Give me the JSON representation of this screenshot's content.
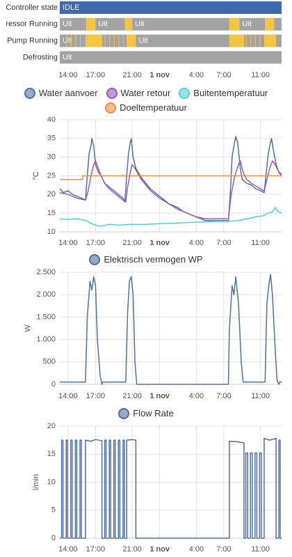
{
  "chart_data": [
    {
      "type": "timeline",
      "xlim": [
        13.1,
        37.3
      ],
      "xticks": [
        {
          "value": 14,
          "label": "14:00"
        },
        {
          "value": 17,
          "label": "17:00"
        },
        {
          "value": 21,
          "label": "21:00"
        },
        {
          "value": 24,
          "label": "1 nov"
        },
        {
          "value": 28,
          "label": "4:00"
        },
        {
          "value": 31,
          "label": "7:00"
        },
        {
          "value": 35,
          "label": "11:00"
        }
      ],
      "rows": [
        {
          "name": "Controller state",
          "segments": [
            {
              "start": 13.1,
              "end": 37.3,
              "color": "#3f6aab",
              "label": "IDLE"
            }
          ]
        },
        {
          "name": "ressor Running",
          "segments": [
            {
              "start": 13.1,
              "end": 16.0,
              "color": "#a3a3a3",
              "label": "Uit"
            },
            {
              "start": 16.0,
              "end": 17.0,
              "color": "#f4c542",
              "label": null
            },
            {
              "start": 17.0,
              "end": 20.2,
              "color": "#a3a3a3",
              "label": "Uit"
            },
            {
              "start": 20.2,
              "end": 21.0,
              "color": "#f4c542",
              "label": null
            },
            {
              "start": 21.0,
              "end": 31.6,
              "color": "#a3a3a3",
              "label": "Uit"
            },
            {
              "start": 31.6,
              "end": 32.7,
              "color": "#f4c542",
              "label": null
            },
            {
              "start": 32.7,
              "end": 35.5,
              "color": "#a3a3a3",
              "label": "Uit"
            },
            {
              "start": 35.5,
              "end": 36.5,
              "color": "#f4c542",
              "label": null
            },
            {
              "start": 36.5,
              "end": 37.3,
              "color": "#a3a3a3",
              "label": null
            }
          ]
        },
        {
          "name": "Pump Running",
          "segments": [
            {
              "start": 13.1,
              "end": 15.9,
              "color": "#a3a3a3",
              "label": "Uit"
            },
            {
              "start": 13.8,
              "end": 13.88,
              "color": "#f4c542",
              "label": null
            },
            {
              "start": 14.3,
              "end": 14.38,
              "color": "#f4c542",
              "label": null
            },
            {
              "start": 14.8,
              "end": 14.88,
              "color": "#f4c542",
              "label": null
            },
            {
              "start": 15.3,
              "end": 15.38,
              "color": "#f4c542",
              "label": null
            },
            {
              "start": 15.9,
              "end": 17.7,
              "color": "#f4c542",
              "label": null
            },
            {
              "start": 17.7,
              "end": 20.4,
              "color": "#a3a3a3",
              "label": null
            },
            {
              "start": 18.0,
              "end": 18.08,
              "color": "#f4c542",
              "label": null
            },
            {
              "start": 18.5,
              "end": 18.58,
              "color": "#f4c542",
              "label": null
            },
            {
              "start": 19.0,
              "end": 19.08,
              "color": "#f4c542",
              "label": null
            },
            {
              "start": 19.5,
              "end": 19.58,
              "color": "#f4c542",
              "label": null
            },
            {
              "start": 20.0,
              "end": 20.08,
              "color": "#f4c542",
              "label": null
            },
            {
              "start": 20.4,
              "end": 21.4,
              "color": "#f4c542",
              "label": null
            },
            {
              "start": 21.4,
              "end": 31.6,
              "color": "#a3a3a3",
              "label": "Uit"
            },
            {
              "start": 31.6,
              "end": 33.2,
              "color": "#f4c542",
              "label": null
            },
            {
              "start": 33.2,
              "end": 35.4,
              "color": "#a3a3a3",
              "label": null
            },
            {
              "start": 33.4,
              "end": 33.48,
              "color": "#f4c542",
              "label": null
            },
            {
              "start": 33.9,
              "end": 33.98,
              "color": "#f4c542",
              "label": null
            },
            {
              "start": 34.4,
              "end": 34.48,
              "color": "#f4c542",
              "label": null
            },
            {
              "start": 34.9,
              "end": 34.98,
              "color": "#f4c542",
              "label": null
            },
            {
              "start": 35.4,
              "end": 36.7,
              "color": "#f4c542",
              "label": null
            },
            {
              "start": 36.7,
              "end": 37.3,
              "color": "#a3a3a3",
              "label": null
            }
          ]
        },
        {
          "name": "Defrosting",
          "segments": [
            {
              "start": 13.1,
              "end": 37.3,
              "color": "#a3a3a3",
              "label": "Uit"
            }
          ]
        }
      ]
    },
    {
      "type": "line",
      "yaxis_label": "°C",
      "xlim": [
        13.1,
        37.3
      ],
      "xticks": [
        {
          "value": 14,
          "label": "14:00"
        },
        {
          "value": 17,
          "label": "17:00"
        },
        {
          "value": 21,
          "label": "21:00"
        },
        {
          "value": 24,
          "label": "1 nov"
        },
        {
          "value": 28,
          "label": "4:00"
        },
        {
          "value": 31,
          "label": "7:00"
        },
        {
          "value": 35,
          "label": "11:00"
        }
      ],
      "ylim": [
        10,
        40
      ],
      "yticks": [
        10,
        15,
        20,
        25,
        30,
        35,
        40
      ],
      "grid": true,
      "series": [
        {
          "name": "Water aanvoer",
          "color": "#50709e",
          "x": [
            13.1,
            13.5,
            14.0,
            14.5,
            15.0,
            15.5,
            15.9,
            16.1,
            16.3,
            16.5,
            16.6,
            16.8,
            17.0,
            17.3,
            17.6,
            18.0,
            18.5,
            19.0,
            19.5,
            20.0,
            20.2,
            20.4,
            20.6,
            20.8,
            20.9,
            21.1,
            21.4,
            22.0,
            22.5,
            23.0,
            23.5,
            24.0,
            24.5,
            25.0,
            25.5,
            26.0,
            26.5,
            27.0,
            27.5,
            28.0,
            28.5,
            29.0,
            31.5,
            31.7,
            31.9,
            32.1,
            32.3,
            32.5,
            32.8,
            33.0,
            33.5,
            34.0,
            34.5,
            35.0,
            35.4,
            35.6,
            35.8,
            36.0,
            36.2,
            36.4,
            36.7,
            37.0,
            37.3
          ],
          "values": [
            21.5,
            20.5,
            21,
            20,
            19.5,
            19,
            18.5,
            25,
            31,
            33,
            35,
            33,
            28,
            26,
            25,
            23,
            22,
            21,
            20,
            19,
            18,
            25,
            31,
            34,
            35,
            30,
            27,
            24.5,
            23,
            21.5,
            20.5,
            19.5,
            18.5,
            17.5,
            17,
            16.5,
            15.5,
            15,
            14.5,
            14,
            13.5,
            13,
            13,
            20,
            30,
            33,
            35.5,
            34,
            27,
            24,
            23,
            22.5,
            21.5,
            21,
            20.5,
            25,
            30,
            33,
            35,
            32,
            28,
            26,
            25
          ]
        },
        {
          "name": "Water retour",
          "color": "#9b59b6",
          "x": [
            13.1,
            14.0,
            15.0,
            15.9,
            16.2,
            16.5,
            16.8,
            17.0,
            17.3,
            17.6,
            18.0,
            18.5,
            19.0,
            19.5,
            20.0,
            20.3,
            20.5,
            20.8,
            21.0,
            21.3,
            22.0,
            23.0,
            24.0,
            25.0,
            26.0,
            27.0,
            28.0,
            29.0,
            31.5,
            31.8,
            32.2,
            32.6,
            32.8,
            33.1,
            33.5,
            34.0,
            35.0,
            35.4,
            35.7,
            36.0,
            36.3,
            36.6,
            37.0,
            37.3
          ],
          "values": [
            20.5,
            20,
            19,
            18.5,
            21,
            25,
            28,
            29,
            27,
            25,
            23,
            21.5,
            20.5,
            19.5,
            18.5,
            18,
            22,
            26,
            28,
            27,
            24,
            21,
            19,
            17.5,
            16,
            15,
            14,
            13.5,
            13.5,
            20,
            25,
            28,
            29,
            26,
            24,
            23,
            21.5,
            21,
            24,
            27,
            29,
            28,
            26,
            25.5
          ]
        },
        {
          "name": "Buitentemperatuur",
          "color": "#4fd1d4",
          "x": [
            13.1,
            14.0,
            15.0,
            16.0,
            16.5,
            17.0,
            17.5,
            18.5,
            19.5,
            21.0,
            22.5,
            24.0,
            25.5,
            27.0,
            28.5,
            30.0,
            31.5,
            32.5,
            33.5,
            34.5,
            35.3,
            35.8,
            36.3,
            36.6,
            36.9,
            37.3
          ],
          "values": [
            13.5,
            13.3,
            13.5,
            13,
            12.2,
            11.8,
            11.5,
            12,
            11.8,
            12,
            12,
            12.2,
            12.3,
            12.5,
            12.6,
            12.8,
            12.8,
            13,
            13.5,
            14,
            14.3,
            15,
            15.3,
            16.5,
            15.5,
            15
          ]
        },
        {
          "name": "Doeltemperatuur",
          "color": "#f0904a",
          "x": [
            13.1,
            15.6,
            15.6,
            37.3
          ],
          "values": [
            24,
            24,
            25,
            25
          ]
        }
      ]
    },
    {
      "type": "line",
      "yaxis_label": "W",
      "xlim": [
        13.1,
        37.3
      ],
      "xticks": [
        {
          "value": 14,
          "label": "14:00"
        },
        {
          "value": 17,
          "label": "17:00"
        },
        {
          "value": 21,
          "label": "21:00"
        },
        {
          "value": 24,
          "label": "1 nov"
        },
        {
          "value": 28,
          "label": "4:00"
        },
        {
          "value": 31,
          "label": "7:00"
        },
        {
          "value": 35,
          "label": "11:00"
        }
      ],
      "ylim": [
        0,
        2500
      ],
      "yticks": [
        0,
        500,
        {
          "value": 1000,
          "label": "1.000"
        },
        {
          "value": 1500,
          "label": "1.500"
        },
        {
          "value": 2000,
          "label": "2.000"
        },
        {
          "value": 2500,
          "label": "2.500"
        }
      ],
      "grid": true,
      "series": [
        {
          "name": "Elektrisch vermogen WP",
          "color": "#50709e",
          "x": [
            13.1,
            15.9,
            16.1,
            16.4,
            16.6,
            16.8,
            17.0,
            17.2,
            17.5,
            17.7,
            17.8,
            20.3,
            20.5,
            20.7,
            20.9,
            21.1,
            21.3,
            21.5,
            31.5,
            31.6,
            31.9,
            32.1,
            32.3,
            32.6,
            32.9,
            33.1,
            35.5,
            35.7,
            35.9,
            36.1,
            36.3,
            36.6,
            36.8,
            37.0,
            37.1,
            37.3
          ],
          "values": [
            50,
            50,
            1500,
            2300,
            2100,
            2400,
            2200,
            1000,
            200,
            0,
            50,
            50,
            1600,
            2300,
            2400,
            2000,
            500,
            0,
            0,
            1200,
            2200,
            2000,
            2400,
            1800,
            500,
            50,
            50,
            1800,
            2200,
            2450,
            2000,
            800,
            100,
            0,
            50,
            50
          ]
        }
      ]
    },
    {
      "type": "line",
      "yaxis_label": "l/min",
      "xlim": [
        13.1,
        37.3
      ],
      "xticks": [
        {
          "value": 14,
          "label": "14:00"
        },
        {
          "value": 17,
          "label": "17:00"
        },
        {
          "value": 21,
          "label": "21:00"
        },
        {
          "value": 24,
          "label": "1 nov"
        },
        {
          "value": 28,
          "label": "4:00"
        },
        {
          "value": 31,
          "label": "7:00"
        },
        {
          "value": 35,
          "label": "11:00"
        }
      ],
      "ylim": [
        0,
        20
      ],
      "yticks": [
        0,
        5,
        10,
        15,
        20
      ],
      "grid": true,
      "series": [
        {
          "name": "Flow Rate",
          "color": "#50709e",
          "x": [
            13.1,
            13.3,
            13.3,
            13.45,
            13.45,
            13.8,
            13.8,
            13.95,
            13.95,
            14.3,
            14.3,
            14.45,
            14.45,
            14.8,
            14.8,
            14.95,
            14.95,
            15.3,
            15.3,
            15.45,
            15.45,
            15.9,
            15.9,
            16.5,
            17.0,
            17.7,
            17.7,
            18.0,
            18.0,
            18.15,
            18.15,
            18.5,
            18.5,
            18.65,
            18.65,
            19.0,
            19.0,
            19.15,
            19.15,
            19.5,
            19.5,
            19.65,
            19.65,
            20.0,
            20.0,
            20.15,
            20.15,
            20.4,
            20.4,
            21.0,
            21.4,
            21.4,
            31.6,
            31.6,
            32.5,
            33.2,
            33.2,
            33.4,
            33.4,
            33.6,
            33.6,
            33.9,
            33.9,
            34.1,
            34.1,
            34.4,
            34.4,
            34.6,
            34.6,
            34.9,
            34.9,
            35.1,
            35.1,
            35.4,
            35.4,
            36.0,
            36.7,
            36.7,
            37.0,
            37.0,
            37.15,
            37.15,
            37.3
          ],
          "values": [
            0,
            0,
            17.5,
            17.5,
            0,
            0,
            17.5,
            17.5,
            0,
            0,
            17.5,
            17.5,
            0,
            0,
            17.5,
            17.5,
            0,
            0,
            17.5,
            17.5,
            0,
            0,
            17.5,
            17.3,
            17.6,
            17.4,
            0,
            0,
            17.5,
            17.5,
            0,
            0,
            17.5,
            17.5,
            0,
            0,
            17.5,
            17.5,
            0,
            0,
            17.5,
            17.5,
            0,
            0,
            17.5,
            17.5,
            0,
            0,
            17.5,
            17.6,
            17.5,
            0,
            0,
            17.3,
            17.2,
            17.0,
            0,
            0,
            15.2,
            15.2,
            0,
            0,
            15.2,
            15.2,
            0,
            0,
            15.2,
            15.2,
            0,
            0,
            15.2,
            15.2,
            0,
            0,
            17.8,
            17.5,
            17.8,
            0,
            0,
            17.5,
            17.5,
            0,
            0
          ]
        }
      ]
    }
  ]
}
